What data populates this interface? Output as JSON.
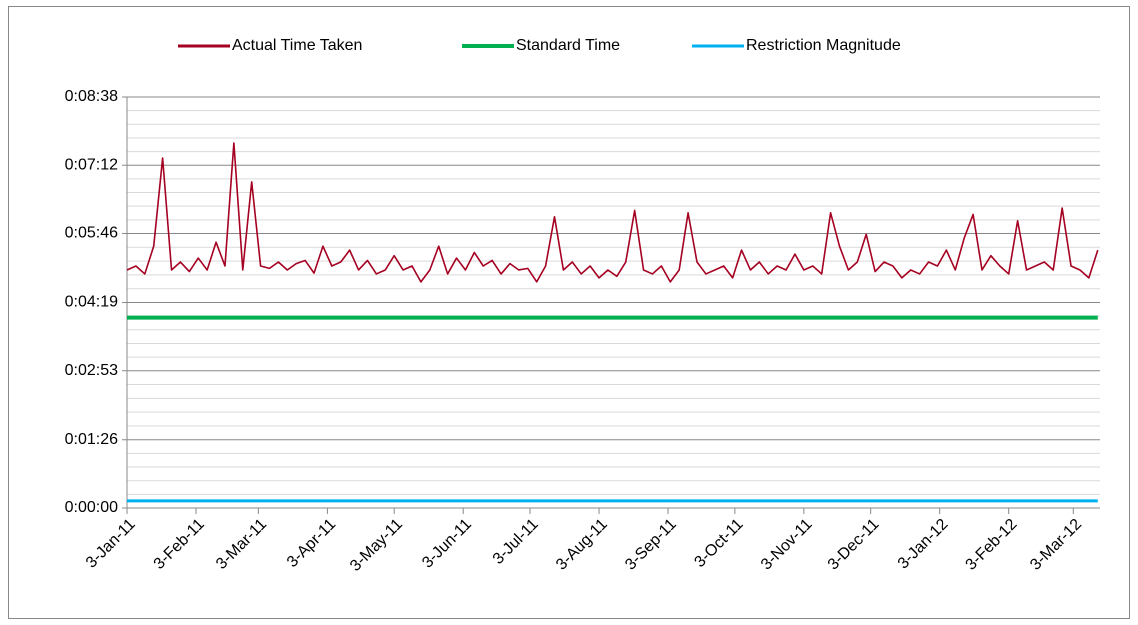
{
  "chart_data": {
    "type": "line",
    "x": [
      "2011-01-03",
      "2011-01-07",
      "2011-01-11",
      "2011-01-15",
      "2011-01-19",
      "2011-01-23",
      "2011-01-27",
      "2011-01-31",
      "2011-02-04",
      "2011-02-08",
      "2011-02-12",
      "2011-02-16",
      "2011-02-20",
      "2011-02-24",
      "2011-02-28",
      "2011-03-04",
      "2011-03-08",
      "2011-03-12",
      "2011-03-16",
      "2011-03-20",
      "2011-03-24",
      "2011-03-28",
      "2011-04-01",
      "2011-04-05",
      "2011-04-09",
      "2011-04-13",
      "2011-04-17",
      "2011-04-21",
      "2011-04-25",
      "2011-04-29",
      "2011-05-03",
      "2011-05-07",
      "2011-05-11",
      "2011-05-15",
      "2011-05-19",
      "2011-05-23",
      "2011-05-27",
      "2011-05-31",
      "2011-06-04",
      "2011-06-08",
      "2011-06-12",
      "2011-06-16",
      "2011-06-20",
      "2011-06-24",
      "2011-06-28",
      "2011-07-02",
      "2011-07-06",
      "2011-07-10",
      "2011-07-14",
      "2011-07-18",
      "2011-07-22",
      "2011-07-26",
      "2011-07-30",
      "2011-08-03",
      "2011-08-07",
      "2011-08-11",
      "2011-08-15",
      "2011-08-19",
      "2011-08-23",
      "2011-08-27",
      "2011-08-31",
      "2011-09-04",
      "2011-09-08",
      "2011-09-12",
      "2011-09-16",
      "2011-09-20",
      "2011-09-24",
      "2011-09-28",
      "2011-10-02",
      "2011-10-06",
      "2011-10-10",
      "2011-10-14",
      "2011-10-18",
      "2011-10-22",
      "2011-10-26",
      "2011-10-30",
      "2011-11-03",
      "2011-11-07",
      "2011-11-11",
      "2011-11-15",
      "2011-11-19",
      "2011-11-23",
      "2011-11-27",
      "2011-12-01",
      "2011-12-05",
      "2011-12-09",
      "2011-12-13",
      "2011-12-17",
      "2011-12-21",
      "2011-12-25",
      "2011-12-29",
      "2012-01-02",
      "2012-01-06",
      "2012-01-10",
      "2012-01-14",
      "2012-01-18",
      "2012-01-22",
      "2012-01-26",
      "2012-01-30",
      "2012-02-03",
      "2012-02-07",
      "2012-02-11",
      "2012-02-15",
      "2012-02-19",
      "2012-02-23",
      "2012-02-27",
      "2012-03-02",
      "2012-03-06",
      "2012-03-10",
      "2012-03-14"
    ],
    "series": [
      {
        "name": "Actual Time Taken",
        "color": "#a50021",
        "values": [
          300,
          305,
          295,
          330,
          441,
          300,
          310,
          298,
          315,
          300,
          335,
          305,
          460,
          300,
          411,
          305,
          302,
          310,
          300,
          308,
          312,
          296,
          330,
          305,
          310,
          325,
          300,
          312,
          295,
          300,
          318,
          300,
          305,
          285,
          300,
          330,
          295,
          315,
          300,
          322,
          305,
          312,
          295,
          308,
          300,
          302,
          285,
          305,
          367,
          300,
          310,
          295,
          305,
          290,
          300,
          292,
          310,
          375,
          300,
          295,
          305,
          285,
          300,
          372,
          310,
          295,
          300,
          305,
          290,
          325,
          300,
          310,
          295,
          305,
          300,
          320,
          300,
          305,
          295,
          372,
          330,
          300,
          310,
          345,
          298,
          310,
          305,
          290,
          300,
          295,
          310,
          305,
          325,
          300,
          340,
          370,
          300,
          318,
          305,
          295,
          362,
          300,
          305,
          310,
          300,
          378,
          305,
          300,
          290,
          325
        ]
      },
      {
        "name": "Standard Time",
        "color": "#00b050",
        "values": [
          240,
          240,
          240,
          240,
          240,
          240,
          240,
          240,
          240,
          240,
          240,
          240,
          240,
          240,
          240,
          240,
          240,
          240,
          240,
          240,
          240,
          240,
          240,
          240,
          240,
          240,
          240,
          240,
          240,
          240,
          240,
          240,
          240,
          240,
          240,
          240,
          240,
          240,
          240,
          240,
          240,
          240,
          240,
          240,
          240,
          240,
          240,
          240,
          240,
          240,
          240,
          240,
          240,
          240,
          240,
          240,
          240,
          240,
          240,
          240,
          240,
          240,
          240,
          240,
          240,
          240,
          240,
          240,
          240,
          240,
          240,
          240,
          240,
          240,
          240,
          240,
          240,
          240,
          240,
          240,
          240,
          240,
          240,
          240,
          240,
          240,
          240,
          240,
          240,
          240,
          240,
          240,
          240,
          240,
          240,
          240,
          240,
          240,
          240,
          240,
          240,
          240,
          240,
          240,
          240,
          240,
          240,
          240,
          240,
          240
        ]
      },
      {
        "name": "Restriction Magnitude",
        "color": "#00b0f0",
        "values": [
          9,
          9,
          9,
          9,
          9,
          9,
          9,
          9,
          9,
          9,
          9,
          9,
          9,
          9,
          9,
          9,
          9,
          9,
          9,
          9,
          9,
          9,
          9,
          9,
          9,
          9,
          9,
          9,
          9,
          9,
          9,
          9,
          9,
          9,
          9,
          9,
          9,
          9,
          9,
          9,
          9,
          9,
          9,
          9,
          9,
          9,
          9,
          9,
          9,
          9,
          9,
          9,
          9,
          9,
          9,
          9,
          9,
          9,
          9,
          9,
          9,
          9,
          9,
          9,
          9,
          9,
          9,
          9,
          9,
          9,
          9,
          9,
          9,
          9,
          9,
          9,
          9,
          9,
          9,
          9,
          9,
          9,
          9,
          9,
          9,
          9,
          9,
          9,
          9,
          9,
          9,
          9,
          9,
          9,
          9,
          9,
          9,
          9,
          9,
          9,
          9,
          9,
          9,
          9,
          9,
          9,
          9,
          9,
          9,
          9
        ]
      }
    ],
    "xlim": [
      "2011-01-03",
      "2012-03-15"
    ],
    "xticks": [
      {
        "value": "2011-01-03",
        "label": "3-Jan-11"
      },
      {
        "value": "2011-02-03",
        "label": "3-Feb-11"
      },
      {
        "value": "2011-03-03",
        "label": "3-Mar-11"
      },
      {
        "value": "2011-04-03",
        "label": "3-Apr-11"
      },
      {
        "value": "2011-05-03",
        "label": "3-May-11"
      },
      {
        "value": "2011-06-03",
        "label": "3-Jun-11"
      },
      {
        "value": "2011-07-03",
        "label": "3-Jul-11"
      },
      {
        "value": "2011-08-03",
        "label": "3-Aug-11"
      },
      {
        "value": "2011-09-03",
        "label": "3-Sep-11"
      },
      {
        "value": "2011-10-03",
        "label": "3-Oct-11"
      },
      {
        "value": "2011-11-03",
        "label": "3-Nov-11"
      },
      {
        "value": "2011-12-03",
        "label": "3-Dec-11"
      },
      {
        "value": "2012-01-03",
        "label": "3-Jan-12"
      },
      {
        "value": "2012-02-03",
        "label": "3-Feb-12"
      },
      {
        "value": "2012-03-03",
        "label": "3-Mar-12"
      }
    ],
    "ylim": [
      0,
      518
    ],
    "yticks": [
      {
        "value": 0,
        "label": "0:00:00"
      },
      {
        "value": 86,
        "label": "0:01:26"
      },
      {
        "value": 173,
        "label": "0:02:53"
      },
      {
        "value": 259,
        "label": "0:04:19"
      },
      {
        "value": 346,
        "label": "0:05:46"
      },
      {
        "value": 432,
        "label": "0:07:12"
      },
      {
        "value": 518,
        "label": "0:08:38"
      }
    ],
    "grid": true,
    "legend": "top"
  }
}
